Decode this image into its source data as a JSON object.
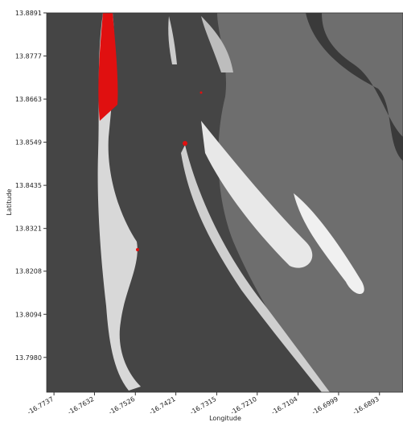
{
  "chart_data": {
    "type": "image",
    "xlabel": "Longitude",
    "ylabel": "Latitude",
    "xlim": [
      -16.7756,
      -16.6832
    ],
    "ylim": [
      13.7888,
      13.8891
    ],
    "xticks": [
      -16.7737,
      -16.7632,
      -16.7526,
      -16.7421,
      -16.7315,
      {
        "value": -16.721,
        "label": "-16.7210"
      },
      -16.7104,
      -16.6999,
      -16.6893
    ],
    "yticks": [
      13.8891,
      13.8777,
      13.8663,
      13.8549,
      13.8435,
      13.8321,
      13.8208,
      13.8094,
      {
        "value": 13.798,
        "label": "13.7980"
      }
    ]
  }
}
